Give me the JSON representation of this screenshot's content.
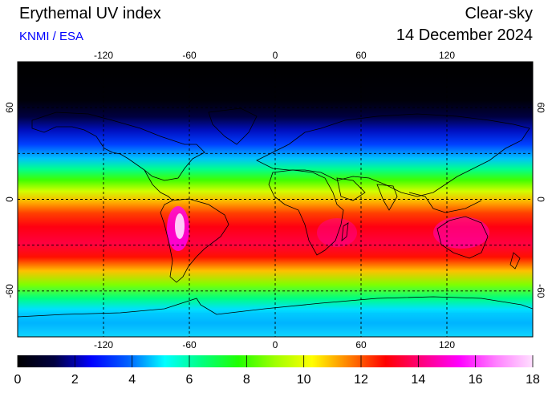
{
  "header": {
    "title": "Erythemal UV index",
    "credit": "KNMI / ESA",
    "sky": "Clear-sky",
    "date": "14 December 2024"
  },
  "map": {
    "lon_ticks": [
      -120,
      -60,
      0,
      60,
      120
    ],
    "lat_ticks": [
      60,
      0,
      -60
    ],
    "lat_range": [
      -90,
      90
    ],
    "lon_range": [
      -180,
      180
    ],
    "grid": true
  },
  "colorbar": {
    "ticks": [
      0,
      2,
      4,
      6,
      8,
      10,
      12,
      14,
      16,
      18
    ],
    "min": 0,
    "max": 18,
    "colors": [
      "#000000",
      "#000040",
      "#0000ff",
      "#0060ff",
      "#00ffff",
      "#00ff80",
      "#20ff00",
      "#a0ff00",
      "#ffff00",
      "#ff8000",
      "#ff0000",
      "#ff0080",
      "#ff00ff",
      "#ff80ff",
      "#ffe0ff"
    ]
  }
}
